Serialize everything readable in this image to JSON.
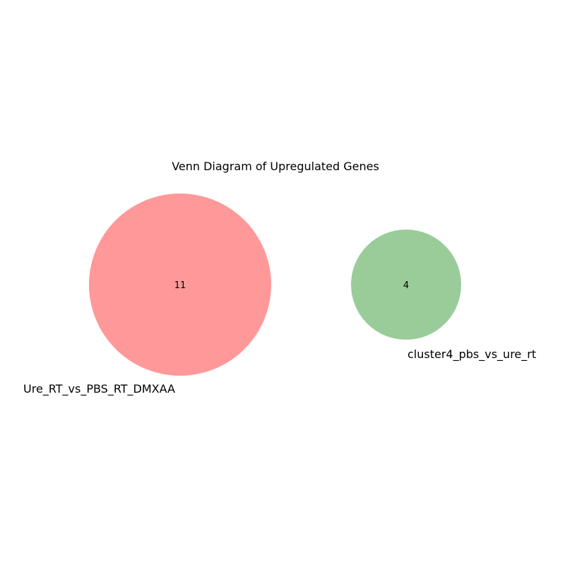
{
  "diagram": {
    "title": "Venn Diagram of Upregulated Genes",
    "sets": [
      {
        "name": "Ure_RT_vs_PBS_RT_DMXAA",
        "count": "11",
        "color": "#ff9999"
      },
      {
        "name": "cluster4_pbs_vs_ure_rt",
        "count": "4",
        "color": "#99cc99"
      }
    ]
  }
}
